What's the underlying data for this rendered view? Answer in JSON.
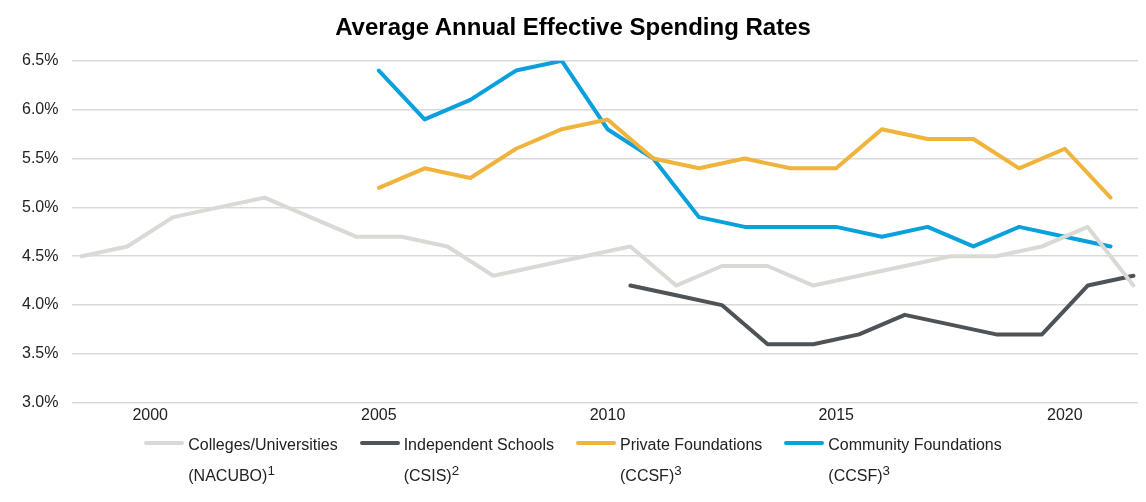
{
  "chart_data": {
    "type": "line",
    "title": "Average Annual Effective Spending Rates",
    "xlim": [
      1998.3,
      2021.6
    ],
    "xticks": [
      2000,
      2005,
      2010,
      2015,
      2020
    ],
    "ylim": [
      3.0,
      6.5
    ],
    "yticks": [
      {
        "value": 3.0,
        "label": "3.0%"
      },
      {
        "value": 3.5,
        "label": "3.5%"
      },
      {
        "value": 4.0,
        "label": "4.0%"
      },
      {
        "value": 4.5,
        "label": "4.5%"
      },
      {
        "value": 5.0,
        "label": "5.0%"
      },
      {
        "value": 5.5,
        "label": "5.5%"
      },
      {
        "value": 6.0,
        "label": "6.0%"
      },
      {
        "value": 6.5,
        "label": "6.5%"
      }
    ],
    "grid": "y",
    "legend": "bottom",
    "marker": "none",
    "line_style": "solid",
    "series": [
      {
        "name": "Colleges/Universities\n(NACUBO)$^{1}$",
        "color": "#d9d9d6",
        "x": [
          1998.5,
          1999.5,
          2000.5,
          2001.5,
          2002.5,
          2003.5,
          2004.5,
          2005.5,
          2006.5,
          2007.5,
          2008.5,
          2009.5,
          2010.5,
          2011.5,
          2012.5,
          2013.5,
          2014.5,
          2015.5,
          2016.5,
          2017.5,
          2018.5,
          2019.5,
          2020.5,
          2021.5
        ],
        "values": [
          4.5,
          4.6,
          4.9,
          5.0,
          5.1,
          4.9,
          4.7,
          4.7,
          4.6,
          4.3,
          4.4,
          4.5,
          4.6,
          4.2,
          4.4,
          4.4,
          4.2,
          4.3,
          4.4,
          4.5,
          4.5,
          4.6,
          4.8,
          4.2
        ]
      },
      {
        "name": "Independent Schools\n(CSIS)$^{2}$",
        "color": "#4d5357",
        "x": [
          2010.5,
          2011.5,
          2012.5,
          2013.5,
          2014.5,
          2015.5,
          2016.5,
          2017.5,
          2018.5,
          2019.5,
          2020.5,
          2021.5
        ],
        "values": [
          4.2,
          4.1,
          4.0,
          3.6,
          3.6,
          3.7,
          3.9,
          3.8,
          3.7,
          3.7,
          4.2,
          4.3
        ]
      },
      {
        "name": "Private Foundations\n(CCSF)$^{3}$",
        "color": "#f0b43c",
        "x": [
          2005,
          2006,
          2007,
          2008,
          2009,
          2010,
          2011,
          2012,
          2013,
          2014,
          2015,
          2016,
          2017,
          2018,
          2019,
          2020,
          2021
        ],
        "values": [
          5.2,
          5.4,
          5.3,
          5.6,
          5.8,
          5.9,
          5.5,
          5.4,
          5.5,
          5.4,
          5.4,
          5.8,
          5.7,
          5.7,
          5.4,
          5.6,
          5.1
        ]
      },
      {
        "name": "Community Foundations\n(CCSF)$^{3}$",
        "color": "#0aa0dc",
        "x": [
          2005,
          2006,
          2007,
          2008,
          2009,
          2010,
          2011,
          2012,
          2013,
          2014,
          2015,
          2016,
          2017,
          2018,
          2019,
          2020,
          2021
        ],
        "values": [
          6.4,
          5.9,
          6.1,
          6.4,
          6.5,
          5.8,
          5.5,
          4.9,
          4.8,
          4.8,
          4.8,
          4.7,
          4.8,
          4.6,
          4.8,
          4.7,
          4.6
        ]
      }
    ]
  }
}
